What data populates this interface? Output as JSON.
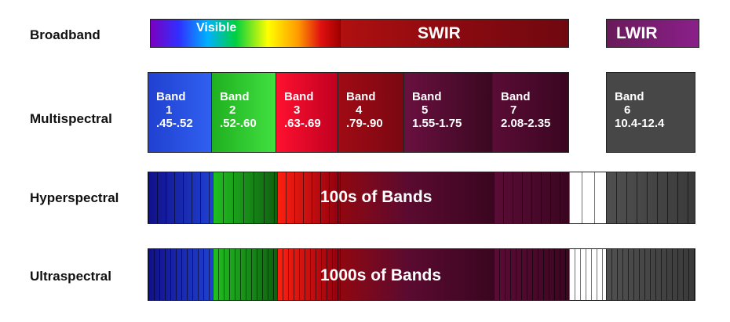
{
  "labels": {
    "broadband": "Broadband",
    "multispectral": "Multispectral",
    "hyperspectral": "Hyperspectral",
    "ultraspectral": "Ultraspectral"
  },
  "broadband": {
    "visible": "Visible",
    "swir": "SWIR",
    "lwir": "LWIR"
  },
  "bands": [
    {
      "word": "Band",
      "num": "1",
      "range": ".45-.52"
    },
    {
      "word": "Band",
      "num": "2",
      "range": ".52-.60"
    },
    {
      "word": "Band",
      "num": "3",
      "range": ".63-.69"
    },
    {
      "word": "Band",
      "num": "4",
      "range": ".79-.90"
    },
    {
      "word": "Band",
      "num": "5",
      "range": "1.55-1.75"
    },
    {
      "word": "Band",
      "num": "7",
      "range": "2.08-2.35"
    },
    {
      "word": "Band",
      "num": "6",
      "range": "10.4-12.4"
    }
  ],
  "hyperspectral": {
    "text": "100s of Bands"
  },
  "ultraspectral": {
    "text": "1000s of Bands"
  },
  "colors": {
    "blue": "#1a1aa8",
    "green": "#1fae1f",
    "red": "#e01020",
    "swir": "#8a0a1a",
    "purple": "#6a1040",
    "lwir": "#7a1a6a",
    "gray": "#444444"
  }
}
